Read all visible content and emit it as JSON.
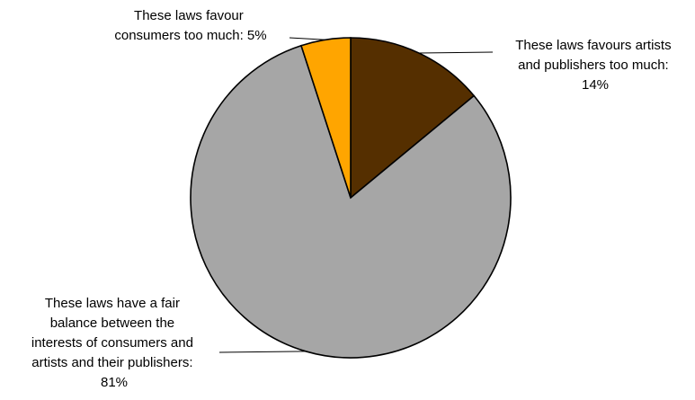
{
  "chart_data": {
    "type": "pie",
    "title": "",
    "legend": "none",
    "slices": [
      {
        "value": 14,
        "color": "#552f00",
        "label_lines": [
          "These laws favours artists",
          "and publishers too much:",
          "14%"
        ]
      },
      {
        "value": 81,
        "color": "#a6a6a6",
        "label_lines": [
          "These laws have a fair",
          "balance between the",
          "interests of consumers and",
          "artists and their publishers:",
          "81%"
        ]
      },
      {
        "value": 5,
        "color": "#ffa500",
        "label_lines": [
          "These laws favour",
          "consumers too much: 5%"
        ]
      }
    ]
  }
}
